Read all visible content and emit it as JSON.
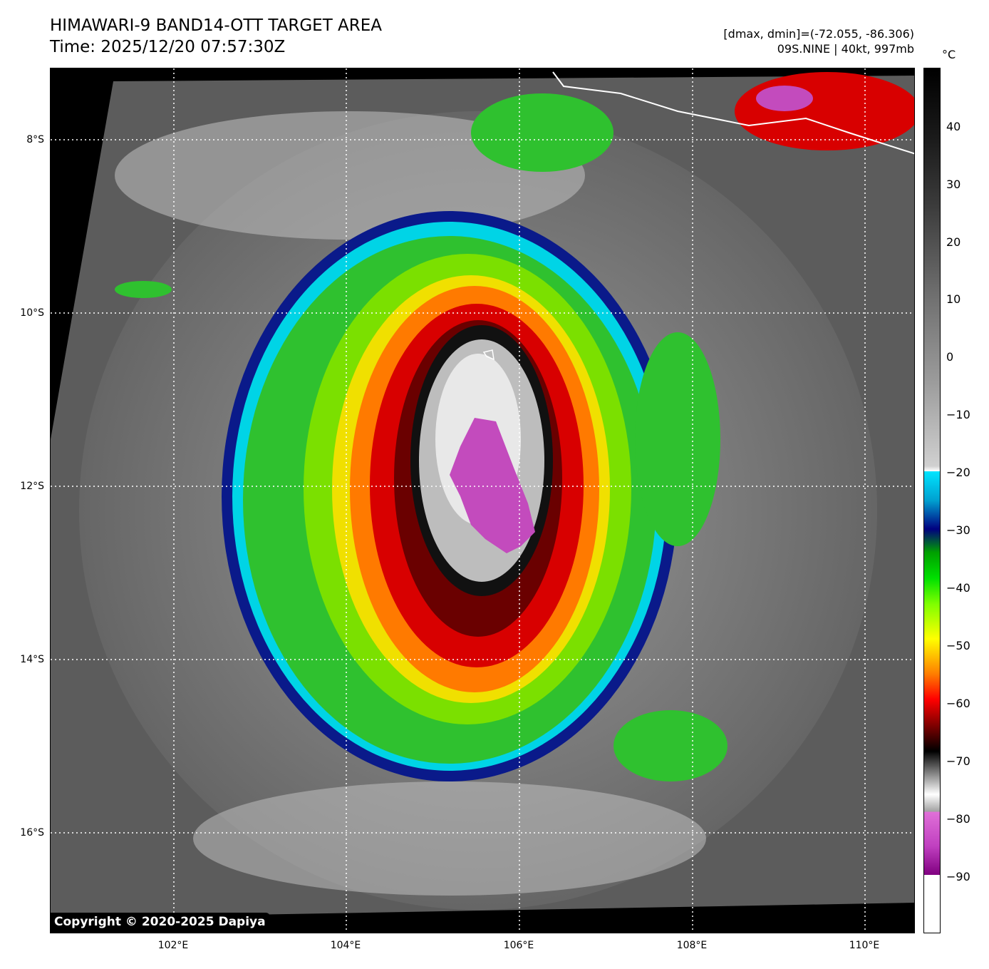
{
  "header": {
    "title_line1": "HIMAWARI-9 BAND14-OTT TARGET AREA",
    "title_line2": "Time: 2025/12/20 07:57:30Z",
    "meta_line1": "[dmax, dmin]=(-72.055, -86.306)",
    "meta_line2": "09S.NINE | 40kt, 997mb"
  },
  "axes": {
    "lat_labels": [
      "8°S",
      "10°S",
      "12°S",
      "14°S",
      "16°S"
    ],
    "lon_labels": [
      "102°E",
      "104°E",
      "106°E",
      "108°E",
      "110°E"
    ]
  },
  "colorbar": {
    "unit": "°C",
    "ticks": [
      "40",
      "30",
      "20",
      "10",
      "0",
      "−10",
      "−20",
      "−30",
      "−40",
      "−50",
      "−60",
      "−70",
      "−80",
      "−90"
    ],
    "range": [
      -100,
      50
    ]
  },
  "footer": {
    "copyright": "Copyright © 2020-2025 Dapiya"
  },
  "colors": {
    "gridline": "#ffffff",
    "coastline": "#ffffff",
    "eye": "#c34bbd"
  }
}
